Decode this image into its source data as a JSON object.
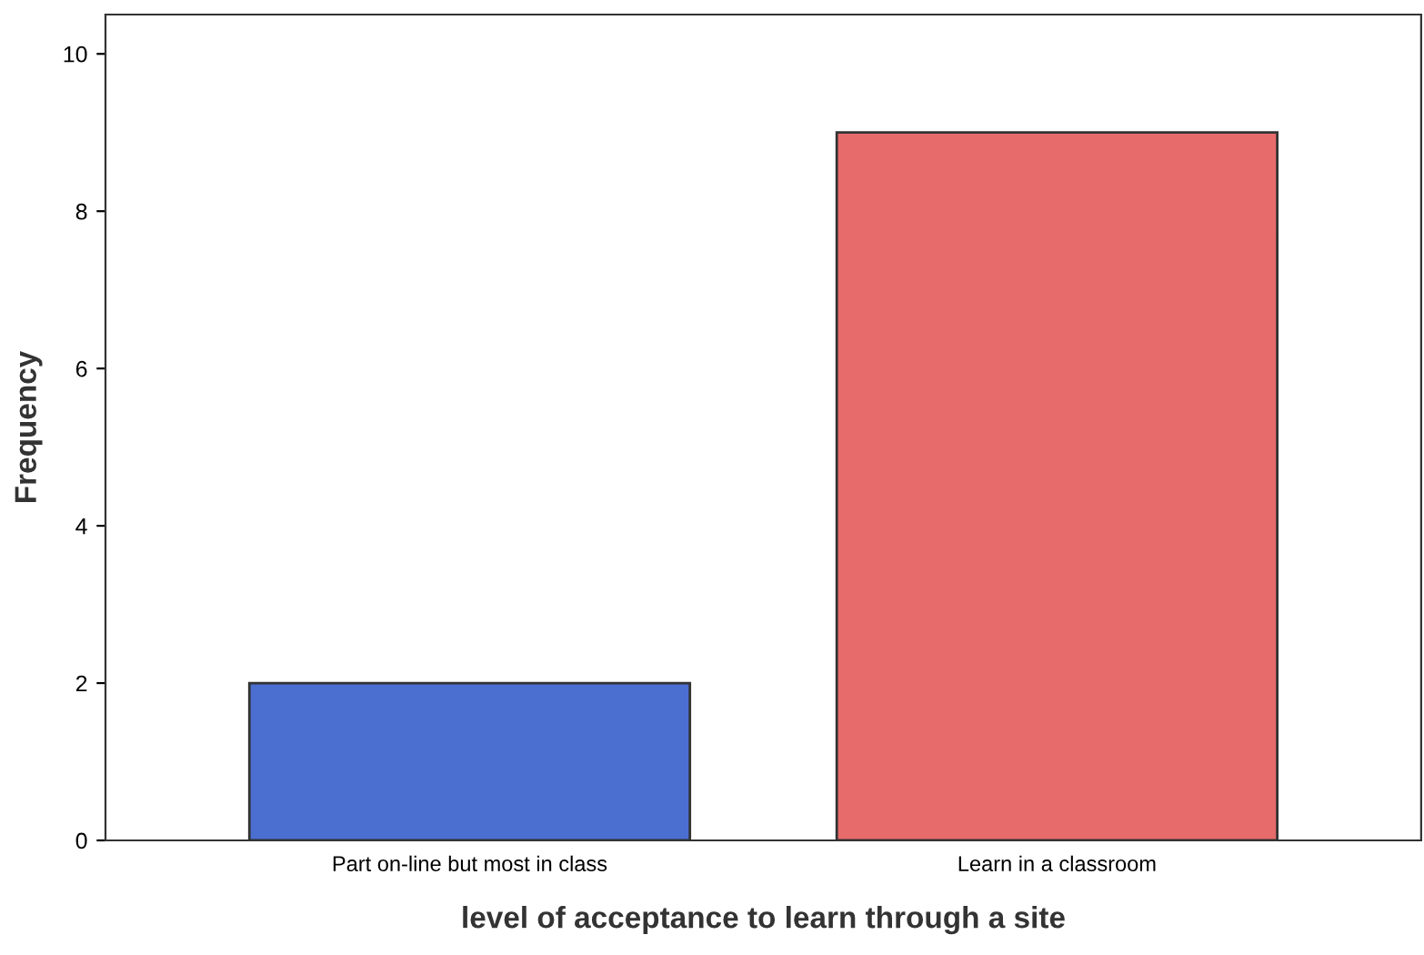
{
  "chart_data": {
    "type": "bar",
    "xlabel": "level of acceptance to learn through a site",
    "ylabel": "Frequency",
    "categories": [
      "Part on-line but most in class",
      "Learn in a classroom"
    ],
    "values": [
      2,
      9
    ],
    "colors": [
      "#4a6fd1",
      "#e86b6b"
    ],
    "ylim": [
      0,
      10.5
    ],
    "yticks": [
      0,
      2,
      4,
      6,
      8,
      10
    ],
    "grid": false
  }
}
